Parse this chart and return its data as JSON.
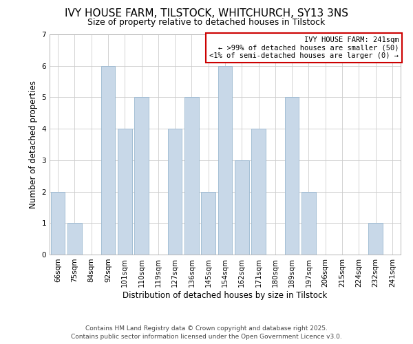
{
  "title": "IVY HOUSE FARM, TILSTOCK, WHITCHURCH, SY13 3NS",
  "subtitle": "Size of property relative to detached houses in Tilstock",
  "xlabel": "Distribution of detached houses by size in Tilstock",
  "ylabel": "Number of detached properties",
  "bar_labels": [
    "66sqm",
    "75sqm",
    "84sqm",
    "92sqm",
    "101sqm",
    "110sqm",
    "119sqm",
    "127sqm",
    "136sqm",
    "145sqm",
    "154sqm",
    "162sqm",
    "171sqm",
    "180sqm",
    "189sqm",
    "197sqm",
    "206sqm",
    "215sqm",
    "224sqm",
    "232sqm",
    "241sqm"
  ],
  "bar_values": [
    2,
    1,
    0,
    6,
    4,
    5,
    0,
    4,
    5,
    2,
    6,
    3,
    4,
    0,
    5,
    2,
    0,
    0,
    0,
    1,
    0
  ],
  "bar_color": "#c8d8e8",
  "bar_edge_color": "#9ab8d0",
  "ylim": [
    0,
    7
  ],
  "yticks": [
    0,
    1,
    2,
    3,
    4,
    5,
    6,
    7
  ],
  "annotation_title": "IVY HOUSE FARM: 241sqm",
  "annotation_line1": "← >99% of detached houses are smaller (50)",
  "annotation_line2": "<1% of semi-detached houses are larger (0) →",
  "annotation_box_color": "#ffffff",
  "annotation_border_color": "#cc0000",
  "footer_line1": "Contains HM Land Registry data © Crown copyright and database right 2025.",
  "footer_line2": "Contains public sector information licensed under the Open Government Licence v3.0.",
  "background_color": "#ffffff",
  "grid_color": "#cccccc",
  "title_fontsize": 11,
  "subtitle_fontsize": 9,
  "axis_label_fontsize": 8.5,
  "tick_fontsize": 7.5,
  "annotation_fontsize": 7.5,
  "footer_fontsize": 6.5
}
